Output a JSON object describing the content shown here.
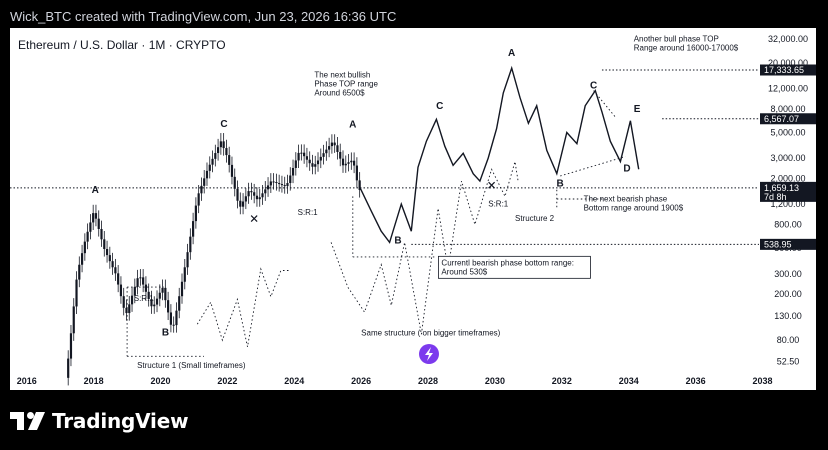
{
  "header": {
    "caption": "Wick_BTC created with TradingView.com, Jun 23, 2026 16:36 UTC"
  },
  "footer": {
    "brand": "TradingView"
  },
  "colors": {
    "background": "#000000",
    "panel": "#ffffff",
    "candle": "#131722",
    "dotted": "#131722",
    "label_bg": "#131722"
  },
  "chart_data": {
    "type": "candlestick",
    "title": "Ethereum / U.S. Dollar · 1M · CRYPTO",
    "y_scale": "log",
    "ylim": [
      40,
      40000
    ],
    "xlim": [
      2015.5,
      2039.6
    ],
    "x_ticks": [
      "2016",
      "2018",
      "2020",
      "2022",
      "2024",
      "2026",
      "2028",
      "2030",
      "2032",
      "2034",
      "2036",
      "2038"
    ],
    "y_ticks": [
      "32,000.00",
      "20,000.00",
      "12,000.00",
      "8,000.00",
      "5,000.00",
      "3,000.00",
      "2,000.00",
      "1,200.00",
      "800.00",
      "500.00",
      "300.00",
      "200.00",
      "130.00",
      "80.00",
      "52.50"
    ],
    "price_path": [
      [
        2017.0,
        15
      ],
      [
        2017.3,
        60
      ],
      [
        2017.55,
        300
      ],
      [
        2017.8,
        600
      ],
      [
        2018.05,
        1050
      ],
      [
        2018.35,
        500
      ],
      [
        2018.7,
        300
      ],
      [
        2019.0,
        130
      ],
      [
        2019.4,
        300
      ],
      [
        2019.8,
        150
      ],
      [
        2020.1,
        230
      ],
      [
        2020.4,
        95
      ],
      [
        2020.8,
        380
      ],
      [
        2021.15,
        1400
      ],
      [
        2021.45,
        2400
      ],
      [
        2021.85,
        4200
      ],
      [
        2022.05,
        3000
      ],
      [
        2022.4,
        1100
      ],
      [
        2022.7,
        1600
      ],
      [
        2022.95,
        1300
      ],
      [
        2023.35,
        1900
      ],
      [
        2023.8,
        1700
      ],
      [
        2024.2,
        3500
      ],
      [
        2024.6,
        2500
      ],
      [
        2024.95,
        3400
      ],
      [
        2025.2,
        4200
      ],
      [
        2025.5,
        2600
      ],
      [
        2025.8,
        2900
      ],
      [
        2025.95,
        1700
      ],
      [
        2026.3,
        1050
      ],
      [
        2026.6,
        700
      ],
      [
        2026.85,
        560
      ],
      [
        2027.2,
        1200
      ],
      [
        2027.5,
        700
      ],
      [
        2027.7,
        2500
      ],
      [
        2027.95,
        4200
      ],
      [
        2028.25,
        6500
      ],
      [
        2028.5,
        3800
      ],
      [
        2028.75,
        2600
      ],
      [
        2029.05,
        3300
      ],
      [
        2029.35,
        2200
      ],
      [
        2029.55,
        1900
      ],
      [
        2029.8,
        3000
      ],
      [
        2030.05,
        5400
      ],
      [
        2030.25,
        11000
      ],
      [
        2030.5,
        18000
      ],
      [
        2030.75,
        10000
      ],
      [
        2031.0,
        6000
      ],
      [
        2031.25,
        8500
      ],
      [
        2031.55,
        3500
      ],
      [
        2031.85,
        2200
      ],
      [
        2032.15,
        5000
      ],
      [
        2032.45,
        4000
      ],
      [
        2032.7,
        8500
      ],
      [
        2033.0,
        11500
      ],
      [
        2033.2,
        7500
      ],
      [
        2033.45,
        4200
      ],
      [
        2033.75,
        2800
      ],
      [
        2034.05,
        6300
      ],
      [
        2034.3,
        2400
      ]
    ],
    "point_labels": [
      {
        "text": "A",
        "x": 2018.05,
        "price": 1500
      },
      {
        "text": "B",
        "x": 2020.15,
        "price": 88
      },
      {
        "text": "C",
        "x": 2021.9,
        "price": 5600
      },
      {
        "text": "A",
        "x": 2025.75,
        "price": 5500
      },
      {
        "text": "B",
        "x": 2027.1,
        "price": 550
      },
      {
        "text": "C",
        "x": 2028.35,
        "price": 8000
      },
      {
        "text": "A",
        "x": 2030.5,
        "price": 23000
      },
      {
        "text": "B",
        "x": 2031.95,
        "price": 1700
      },
      {
        "text": "C",
        "x": 2032.95,
        "price": 12000
      },
      {
        "text": "D",
        "x": 2033.95,
        "price": 2300
      },
      {
        "text": "E",
        "x": 2034.25,
        "price": 7500
      }
    ],
    "sr_labels": [
      {
        "text": "S:R:1",
        "x": 2019.2,
        "price": 175
      },
      {
        "text": "S:R:1",
        "x": 2024.1,
        "price": 970
      },
      {
        "text": "S:R:1",
        "x": 2029.8,
        "price": 1150
      }
    ],
    "annotations": [
      {
        "id": "bull-target",
        "lines": [
          "The next bullish",
          "Phase TOP range",
          "Around 6500$"
        ],
        "x": 2024.6,
        "price": 15000
      },
      {
        "id": "top-target",
        "lines": [
          "Another bull phase TOP",
          "Range around 16000-17000$"
        ],
        "x": 2034.15,
        "price": 30500
      },
      {
        "id": "bear-target",
        "lines": [
          "The next bearish phase",
          "Bottom range around 1900$"
        ],
        "x": 2032.65,
        "price": 1270
      },
      {
        "id": "structure2",
        "lines": [
          "Structure 2"
        ],
        "x": 2030.6,
        "price": 860
      },
      {
        "id": "structure1",
        "lines": [
          "Structure 1 (Small timeframes)"
        ],
        "x": 2019.3,
        "price": 46
      },
      {
        "id": "same-structure",
        "lines": [
          "Same structure ( on bigger timeframes)"
        ],
        "x": 2026.0,
        "price": 88
      }
    ],
    "boxed_annotation": {
      "lines": [
        "Currentl bearish phase bottom range:",
        "Around 530$"
      ],
      "x": 2028.4,
      "price": 355
    },
    "price_levels": [
      {
        "price": 17333.65,
        "label": "17,333.65",
        "x_from": 2033.2
      },
      {
        "price": 6567.07,
        "label": "6,567.07",
        "x_from": 2035.0
      },
      {
        "price": 538.95,
        "label": "538.95",
        "x_from": 2027.5
      },
      {
        "price": 1659.13,
        "label": "1,659.13",
        "sub": "7d 8h",
        "x_from": 2015.5,
        "current": true
      }
    ],
    "cross_markers": [
      {
        "x": 2022.8,
        "price": 900
      },
      {
        "x": 2029.9,
        "price": 1750
      }
    ]
  }
}
